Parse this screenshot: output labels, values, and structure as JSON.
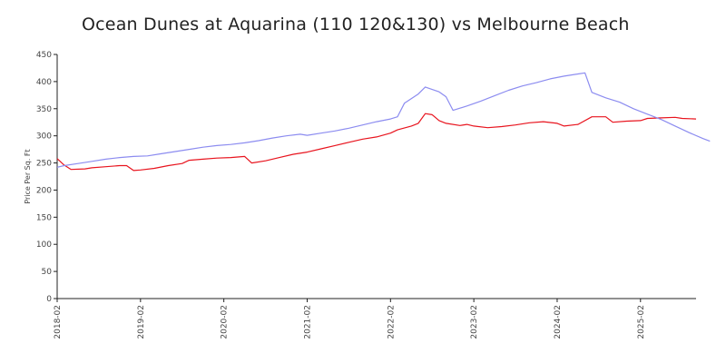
{
  "chart_data": {
    "type": "line",
    "title": "Ocean Dunes at Aquarina (110 120&130) vs Melbourne Beach",
    "xlabel": "",
    "ylabel": "Price Per Sq. Ft",
    "ylim": [
      0,
      450
    ],
    "yticks": [
      "0",
      "50",
      "100",
      "150",
      "200",
      "250",
      "300",
      "350",
      "400",
      "450"
    ],
    "xlim": [
      "2018-02",
      "2025-10"
    ],
    "xticks": [
      "2018-02",
      "2019-02",
      "2020-02",
      "2021-02",
      "2022-02",
      "2023-02",
      "2024-02",
      "2025-02"
    ],
    "grid": false,
    "legend": "none",
    "series": [
      {
        "color": "#e8141e",
        "points": [
          [
            "2018-02",
            258
          ],
          [
            "2018-03",
            246
          ],
          [
            "2018-04",
            238
          ],
          [
            "2018-06",
            239
          ],
          [
            "2018-07",
            241
          ],
          [
            "2018-09",
            243
          ],
          [
            "2018-11",
            245
          ],
          [
            "2018-12",
            245
          ],
          [
            "2019-01",
            236
          ],
          [
            "2019-02",
            237
          ],
          [
            "2019-04",
            240
          ],
          [
            "2019-06",
            245
          ],
          [
            "2019-08",
            249
          ],
          [
            "2019-09",
            255
          ],
          [
            "2019-11",
            257
          ],
          [
            "2020-01",
            259
          ],
          [
            "2020-03",
            260
          ],
          [
            "2020-05",
            262
          ],
          [
            "2020-06",
            250
          ],
          [
            "2020-08",
            254
          ],
          [
            "2020-10",
            260
          ],
          [
            "2020-12",
            266
          ],
          [
            "2021-02",
            270
          ],
          [
            "2021-04",
            276
          ],
          [
            "2021-06",
            282
          ],
          [
            "2021-08",
            288
          ],
          [
            "2021-10",
            294
          ],
          [
            "2021-12",
            298
          ],
          [
            "2022-02",
            305
          ],
          [
            "2022-03",
            311
          ],
          [
            "2022-05",
            318
          ],
          [
            "2022-06",
            323
          ],
          [
            "2022-07",
            341
          ],
          [
            "2022-08",
            339
          ],
          [
            "2022-09",
            328
          ],
          [
            "2022-10",
            323
          ],
          [
            "2022-12",
            319
          ],
          [
            "2023-01",
            321
          ],
          [
            "2023-02",
            318
          ],
          [
            "2023-04",
            315
          ],
          [
            "2023-06",
            317
          ],
          [
            "2023-08",
            320
          ],
          [
            "2023-10",
            324
          ],
          [
            "2023-12",
            326
          ],
          [
            "2024-02",
            323
          ],
          [
            "2024-03",
            318
          ],
          [
            "2024-05",
            321
          ],
          [
            "2024-07",
            335
          ],
          [
            "2024-09",
            335
          ],
          [
            "2024-10",
            325
          ],
          [
            "2024-12",
            327
          ],
          [
            "2025-02",
            328
          ],
          [
            "2025-03",
            332
          ],
          [
            "2025-05",
            333
          ],
          [
            "2025-07",
            334
          ],
          [
            "2025-08",
            332
          ],
          [
            "2025-10",
            331
          ]
        ]
      },
      {
        "color": "#8c8cf0",
        "points": [
          [
            "2018-02",
            242
          ],
          [
            "2018-03",
            245
          ],
          [
            "2018-05",
            249
          ],
          [
            "2018-07",
            253
          ],
          [
            "2018-09",
            257
          ],
          [
            "2018-11",
            260
          ],
          [
            "2019-01",
            262
          ],
          [
            "2019-03",
            263
          ],
          [
            "2019-05",
            267
          ],
          [
            "2019-07",
            271
          ],
          [
            "2019-09",
            275
          ],
          [
            "2019-11",
            279
          ],
          [
            "2020-01",
            282
          ],
          [
            "2020-03",
            284
          ],
          [
            "2020-05",
            287
          ],
          [
            "2020-07",
            291
          ],
          [
            "2020-09",
            296
          ],
          [
            "2020-11",
            300
          ],
          [
            "2021-01",
            303
          ],
          [
            "2021-02",
            301
          ],
          [
            "2021-04",
            305
          ],
          [
            "2021-06",
            309
          ],
          [
            "2021-08",
            314
          ],
          [
            "2021-10",
            320
          ],
          [
            "2021-12",
            326
          ],
          [
            "2022-02",
            331
          ],
          [
            "2022-03",
            335
          ],
          [
            "2022-04",
            360
          ],
          [
            "2022-06",
            377
          ],
          [
            "2022-07",
            390
          ],
          [
            "2022-09",
            381
          ],
          [
            "2022-10",
            372
          ],
          [
            "2022-11",
            347
          ],
          [
            "2023-01",
            355
          ],
          [
            "2023-03",
            364
          ],
          [
            "2023-05",
            374
          ],
          [
            "2023-07",
            384
          ],
          [
            "2023-09",
            392
          ],
          [
            "2023-11",
            398
          ],
          [
            "2024-01",
            405
          ],
          [
            "2024-03",
            410
          ],
          [
            "2024-05",
            414
          ],
          [
            "2024-06",
            416
          ],
          [
            "2024-07",
            380
          ],
          [
            "2024-09",
            370
          ],
          [
            "2024-11",
            362
          ],
          [
            "2025-01",
            350
          ],
          [
            "2025-03",
            340
          ],
          [
            "2025-05",
            330
          ],
          [
            "2025-07",
            318
          ],
          [
            "2025-09",
            306
          ],
          [
            "2025-11",
            295
          ],
          [
            "2025-12",
            290
          ]
        ]
      }
    ]
  }
}
